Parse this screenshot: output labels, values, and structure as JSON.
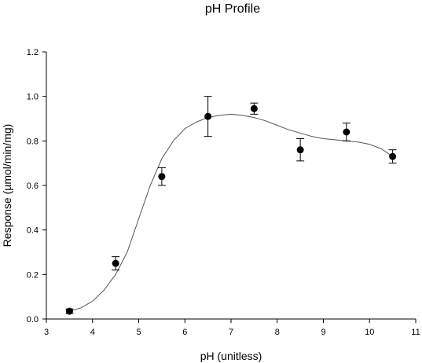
{
  "chart_data": {
    "type": "scatter",
    "title": "pH Profile",
    "xlabel": "pH (unitless)",
    "ylabel": "Response (µmol/min/mg)",
    "xlim": [
      3,
      11
    ],
    "ylim": [
      0.0,
      1.2
    ],
    "x_ticks": [
      "3",
      "4",
      "5",
      "6",
      "7",
      "8",
      "9",
      "10",
      "11"
    ],
    "y_ticks": [
      "0.0",
      "0.2",
      "0.4",
      "0.6",
      "0.8",
      "1.0",
      "1.2"
    ],
    "grid": false,
    "series": [
      {
        "marker_color": "#000000",
        "points": [
          {
            "x": 3.5,
            "y": 0.035,
            "err": 0.01
          },
          {
            "x": 4.5,
            "y": 0.25,
            "err": 0.03
          },
          {
            "x": 5.5,
            "y": 0.64,
            "err": 0.04
          },
          {
            "x": 6.5,
            "y": 0.91,
            "err": 0.09
          },
          {
            "x": 7.5,
            "y": 0.945,
            "err": 0.025
          },
          {
            "x": 8.5,
            "y": 0.76,
            "err": 0.05
          },
          {
            "x": 9.5,
            "y": 0.84,
            "err": 0.04
          },
          {
            "x": 10.5,
            "y": 0.73,
            "err": 0.03
          }
        ]
      }
    ],
    "fit_curve": {
      "color": "#555555",
      "points": [
        [
          3.5,
          0.035
        ],
        [
          3.75,
          0.05
        ],
        [
          4.0,
          0.08
        ],
        [
          4.25,
          0.13
        ],
        [
          4.5,
          0.2
        ],
        [
          4.75,
          0.3
        ],
        [
          5.0,
          0.45
        ],
        [
          5.25,
          0.6
        ],
        [
          5.5,
          0.72
        ],
        [
          5.75,
          0.8
        ],
        [
          6.0,
          0.855
        ],
        [
          6.25,
          0.885
        ],
        [
          6.5,
          0.905
        ],
        [
          6.75,
          0.915
        ],
        [
          7.0,
          0.92
        ],
        [
          7.25,
          0.915
        ],
        [
          7.5,
          0.905
        ],
        [
          7.75,
          0.89
        ],
        [
          8.0,
          0.87
        ],
        [
          8.25,
          0.85
        ],
        [
          8.5,
          0.835
        ],
        [
          8.75,
          0.82
        ],
        [
          9.0,
          0.81
        ],
        [
          9.25,
          0.805
        ],
        [
          9.5,
          0.8
        ],
        [
          9.75,
          0.795
        ],
        [
          10.0,
          0.785
        ],
        [
          10.25,
          0.765
        ],
        [
          10.5,
          0.73
        ]
      ]
    }
  }
}
